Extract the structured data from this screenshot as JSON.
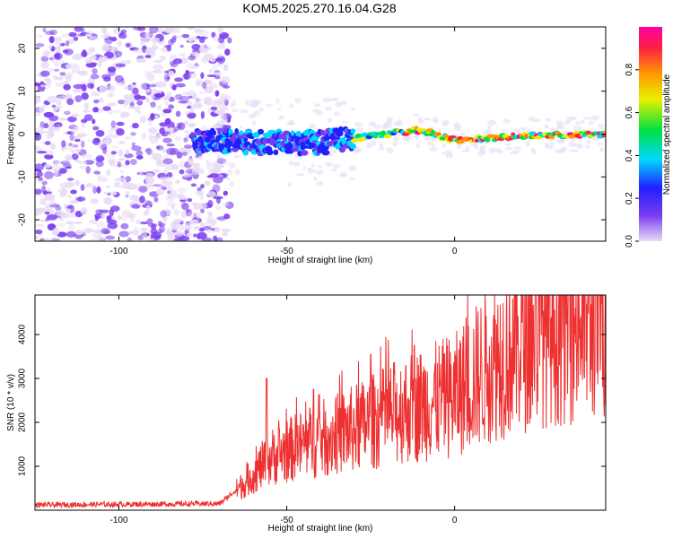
{
  "chart_data": [
    {
      "type": "heatmap",
      "title": "KOM5.2025.270.16.04.G28",
      "xlabel": "Height of straight line (km)",
      "ylabel": "Frequency (Hz)",
      "xlim": [
        -125,
        45
      ],
      "ylim": [
        -25,
        25
      ],
      "x_ticks": [
        -100,
        -50,
        0
      ],
      "y_ticks": [
        -20,
        -10,
        0,
        10,
        20
      ],
      "colorbar": {
        "label": "Normalized spectral amplitude",
        "range": [
          0,
          1
        ],
        "ticks": [
          "0.0",
          "0.2",
          "0.4",
          "0.6",
          "0.8"
        ],
        "colors": [
          "#e8dcf5",
          "#7a3cf0",
          "#2020ff",
          "#00d8ff",
          "#00e040",
          "#e8f000",
          "#ff9a00",
          "#ff2040",
          "#ff00a0"
        ]
      },
      "signal_center_hz": [
        [
          -75,
          -1.5
        ],
        [
          -60,
          -2
        ],
        [
          -40,
          -2
        ],
        [
          -25,
          -0.5
        ],
        [
          -10,
          1
        ],
        [
          0,
          -1.5
        ],
        [
          20,
          -0.5
        ],
        [
          45,
          0
        ]
      ]
    },
    {
      "type": "line",
      "xlabel": "Height of straight line (km)",
      "ylabel": "SNR (10 * v/v)",
      "xlim": [
        -125,
        45
      ],
      "ylim": [
        0,
        4900
      ],
      "x_ticks": [
        -100,
        -50,
        0
      ],
      "y_ticks": [
        1000,
        2000,
        3000,
        4000
      ],
      "color": "#ee3030",
      "trend": [
        [
          -125,
          120
        ],
        [
          -70,
          150
        ],
        [
          -62,
          650
        ],
        [
          -55,
          1200
        ],
        [
          -45,
          1500
        ],
        [
          -30,
          1850
        ],
        [
          -15,
          2300
        ],
        [
          0,
          2600
        ],
        [
          10,
          3300
        ],
        [
          25,
          4100
        ],
        [
          45,
          4450
        ]
      ],
      "peaks": [
        [
          -56,
          3000
        ],
        [
          -42,
          2750
        ],
        [
          -25,
          3550
        ],
        [
          -12,
          3750
        ],
        [
          8,
          3500
        ],
        [
          35,
          4900
        ]
      ]
    }
  ]
}
